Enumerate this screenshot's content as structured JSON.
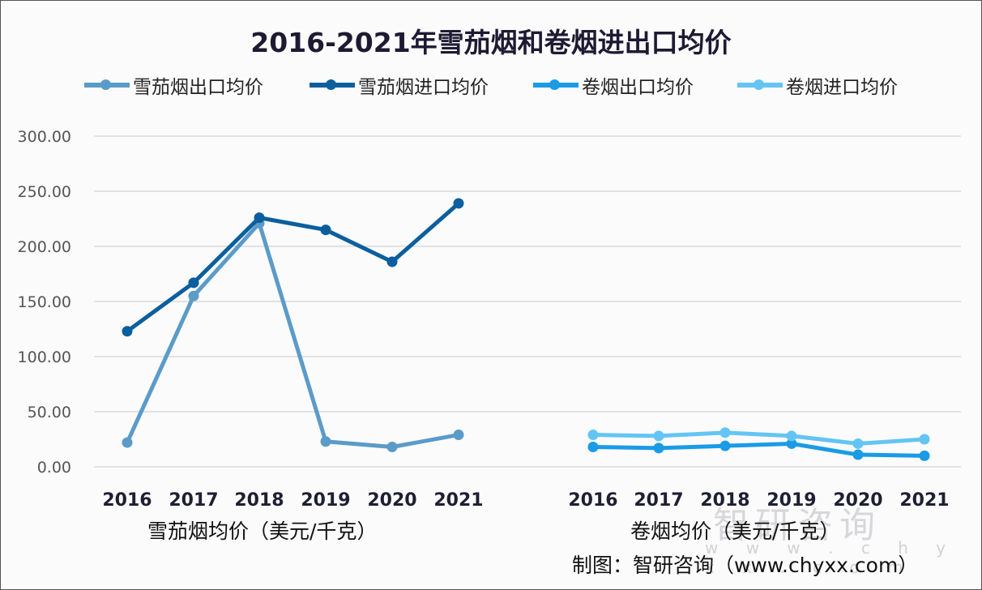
{
  "title": "2016-2021年雪茄烟和卷烟进出口均价",
  "legend": [
    {
      "label": "雪茄烟出口均价",
      "color": "#5b9bc8"
    },
    {
      "label": "雪茄烟进口均价",
      "color": "#0b5f9e"
    },
    {
      "label": "卷烟出口均价",
      "color": "#1a9be6"
    },
    {
      "label": "卷烟进口均价",
      "color": "#63c5f5"
    }
  ],
  "y_ticks": [
    "300.00",
    "250.00",
    "200.00",
    "150.00",
    "100.00",
    "50.00",
    "0.00"
  ],
  "left_group": {
    "xlabel": "雪茄烟均价（美元/千克）",
    "categories": [
      "2016",
      "2017",
      "2018",
      "2019",
      "2020",
      "2021"
    ]
  },
  "right_group": {
    "xlabel": "卷烟均价（美元/千克）",
    "categories": [
      "2016",
      "2017",
      "2018",
      "2019",
      "2020",
      "2021"
    ]
  },
  "source": "制图：智研咨询（www.chyxx.com）",
  "watermark": {
    "text": "智研咨询",
    "url": "w w w . c h y x x . c o m"
  },
  "chart_data": {
    "type": "line",
    "title": "2016-2021年雪茄烟和卷烟进出口均价",
    "x": [
      "2016",
      "2017",
      "2018",
      "2019",
      "2020",
      "2021"
    ],
    "ylim": [
      0,
      300
    ],
    "grid": true,
    "legend_position": "top",
    "groups": [
      {
        "xlabel": "雪茄烟均价（美元/千克）",
        "series": [
          {
            "name": "雪茄烟出口均价",
            "values": [
              22,
              155,
              221,
              23,
              18,
              29
            ]
          },
          {
            "name": "雪茄烟进口均价",
            "values": [
              123,
              167,
              226,
              215,
              186,
              239
            ]
          }
        ]
      },
      {
        "xlabel": "卷烟均价（美元/千克）",
        "series": [
          {
            "name": "卷烟出口均价",
            "values": [
              18,
              17,
              19,
              21,
              11,
              10
            ]
          },
          {
            "name": "卷烟进口均价",
            "values": [
              29,
              28,
              31,
              28,
              21,
              25
            ]
          }
        ]
      }
    ]
  }
}
